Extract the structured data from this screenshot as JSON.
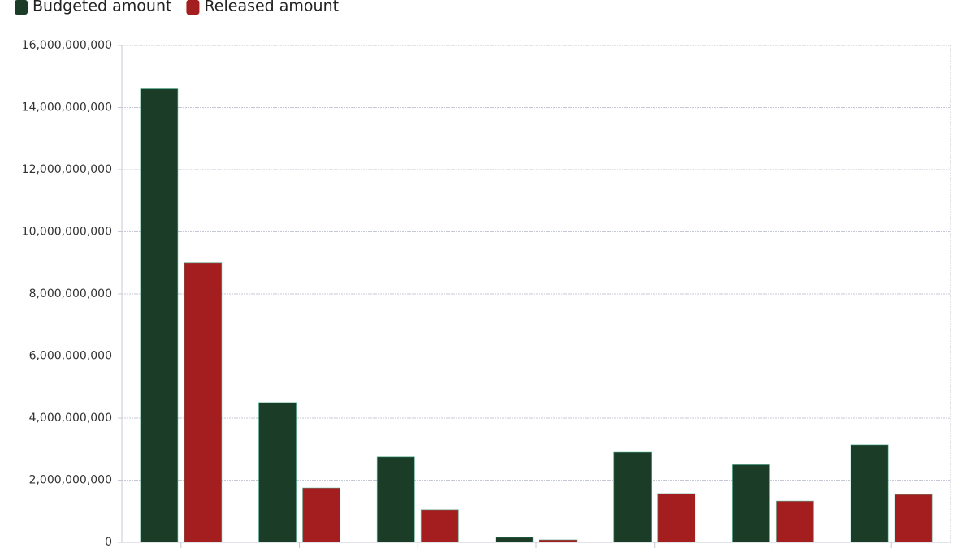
{
  "chart_data": {
    "type": "bar",
    "categories": [
      null,
      null,
      null,
      null,
      null,
      null,
      null
    ],
    "series": [
      {
        "name": "Budgeted amount",
        "color": "#1b3d27",
        "values": [
          14600000000,
          4500000000,
          2750000000,
          160000000,
          2900000000,
          2500000000,
          3140000000
        ]
      },
      {
        "name": "Released amount",
        "color": "#a51e1f",
        "values": [
          9000000000,
          1750000000,
          1050000000,
          80000000,
          1570000000,
          1330000000,
          1540000000
        ]
      }
    ],
    "ylim": [
      0,
      16000000000
    ],
    "yticks": [
      {
        "value": 0,
        "label": "0"
      },
      {
        "value": 2000000000,
        "label": "2,000,000,000"
      },
      {
        "value": 4000000000,
        "label": "4,000,000,000"
      },
      {
        "value": 6000000000,
        "label": "6,000,000,000"
      },
      {
        "value": 8000000000,
        "label": "8,000,000,000"
      },
      {
        "value": 10000000000,
        "label": "10,000,000,000"
      },
      {
        "value": 12000000000,
        "label": "12,000,000,000"
      },
      {
        "value": 14000000000,
        "label": "14,000,000,000"
      },
      {
        "value": 16000000000,
        "label": "16,000,000,000"
      }
    ],
    "grid": true,
    "legend": "top-left"
  }
}
